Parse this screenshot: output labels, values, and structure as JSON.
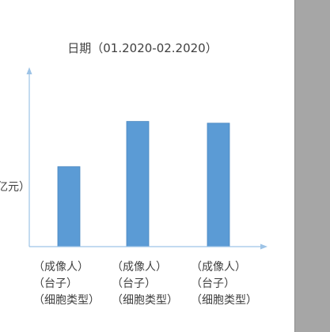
{
  "chart_data": {
    "type": "bar",
    "title": "日期（01.2020-02.2020）",
    "ylabel_visible": "亿元）",
    "categories": [
      [
        "（成像人）",
        "（台子）",
        "（细胞类型）"
      ],
      [
        "（成像人）",
        "（台子）",
        "（细胞类型）"
      ],
      [
        "（成像人）",
        "（台子）",
        "（细胞类型）"
      ]
    ],
    "values": [
      0.46,
      0.72,
      0.71
    ],
    "ylim": [
      0,
      1
    ],
    "grid": false,
    "colors": {
      "bar": "#5b9bd5",
      "bar_edge": "#4a87c0",
      "axis": "#9dc3e6",
      "right_panel": "#a6a6a6"
    }
  }
}
